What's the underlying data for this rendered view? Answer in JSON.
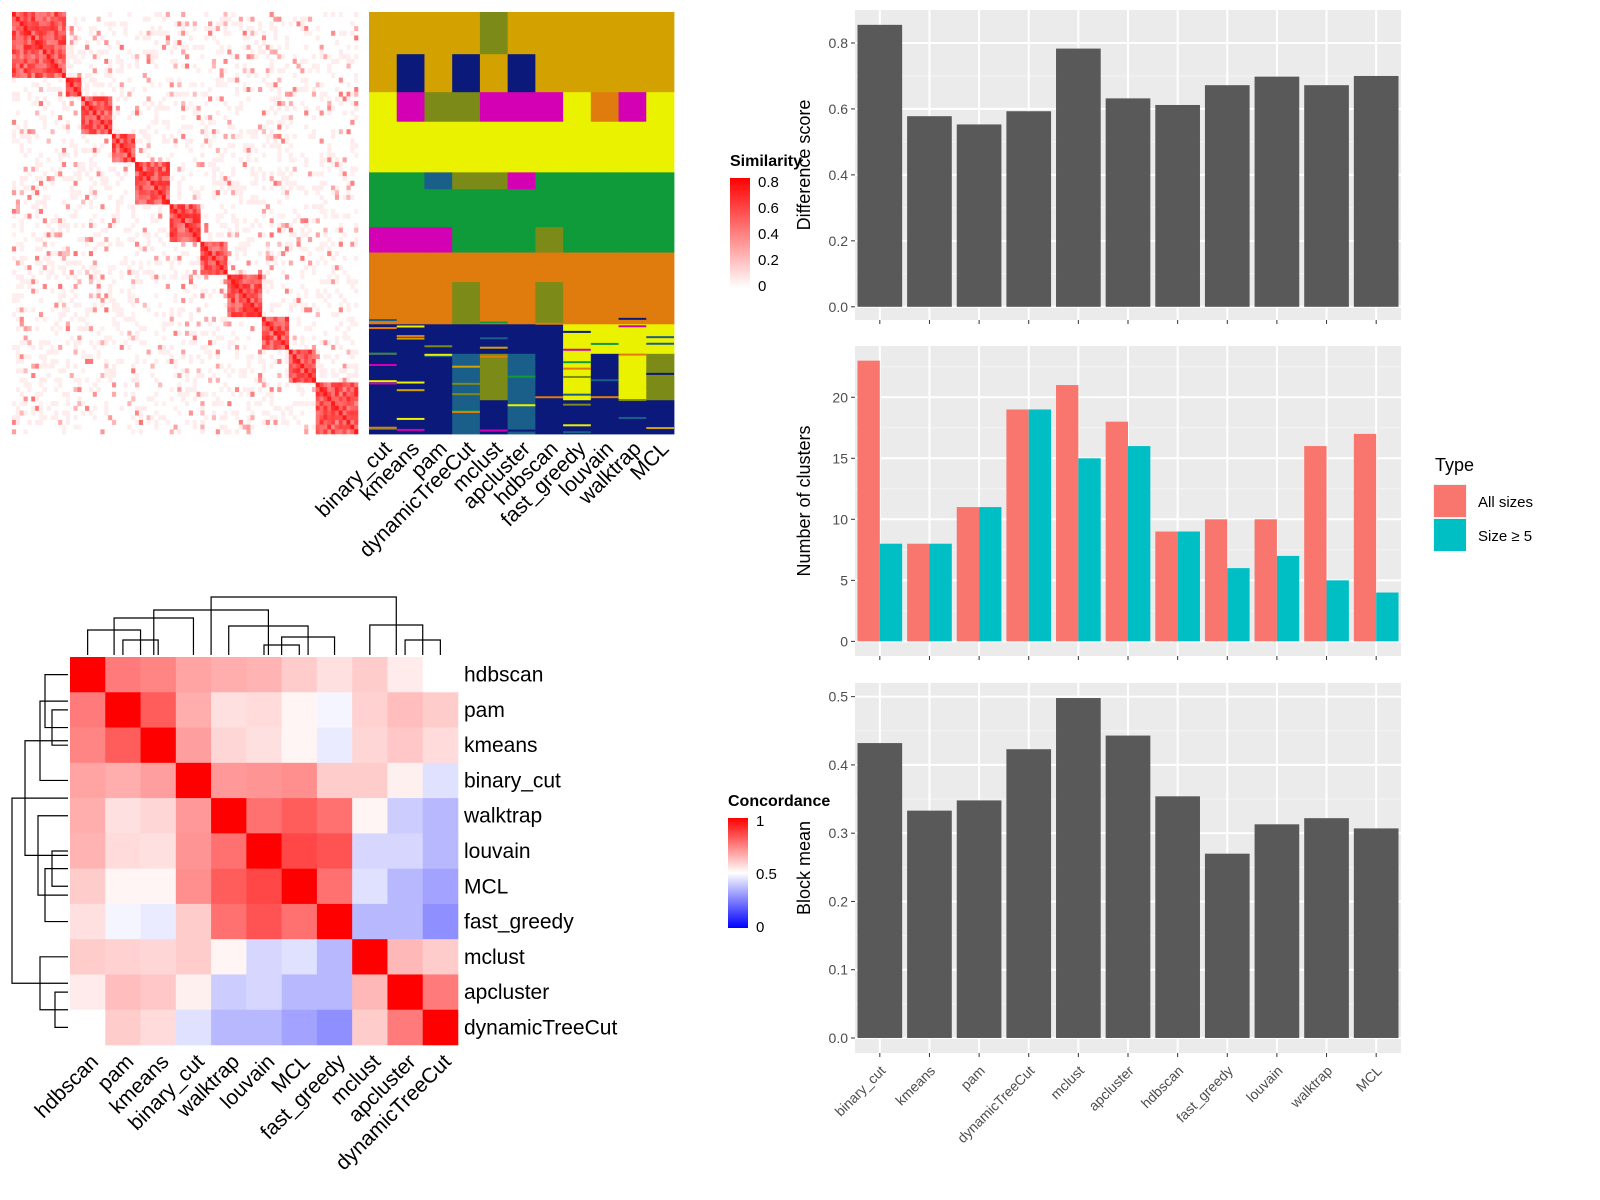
{
  "chart_data": [
    {
      "type": "heatmap",
      "panel": "similarity-heatmap",
      "legend_title": "Similarity",
      "legend_ticks": [
        "0.8",
        "0.6",
        "0.4",
        "0.2",
        "0"
      ],
      "color_low": "#ffffff",
      "color_high": "#ff0000",
      "diagonal_blocks": [
        [
          0,
          0.16
        ],
        [
          0.16,
          0.2
        ],
        [
          0.2,
          0.29
        ],
        [
          0.29,
          0.36
        ],
        [
          0.36,
          0.46
        ],
        [
          0.46,
          0.54
        ],
        [
          0.54,
          0.62
        ],
        [
          0.62,
          0.72
        ],
        [
          0.72,
          0.8
        ],
        [
          0.8,
          0.88
        ],
        [
          0.88,
          1.0
        ]
      ]
    },
    {
      "type": "heatmap",
      "panel": "cluster-assignment-heatmap",
      "columns": [
        "binary_cut",
        "kmeans",
        "pam",
        "dynamicTreeCut",
        "mclust",
        "apcluster",
        "hdbscan",
        "fast_greedy",
        "louvain",
        "walktrap",
        "MCL"
      ],
      "class_colors": [
        "#d4a200",
        "#eaf200",
        "#0f9b3a",
        "#d400b4",
        "#e07b0e",
        "#0b1a7a",
        "#7c8a18",
        "#1a5f8a"
      ],
      "row_bands": [
        {
          "start": 0.0,
          "end": 0.1,
          "cls": [
            0,
            0,
            0,
            0,
            6,
            0,
            0,
            0,
            0,
            0,
            0
          ]
        },
        {
          "start": 0.1,
          "end": 0.19,
          "cls": [
            0,
            5,
            0,
            5,
            0,
            5,
            0,
            0,
            0,
            0,
            0
          ]
        },
        {
          "start": 0.19,
          "end": 0.26,
          "cls": [
            1,
            3,
            6,
            6,
            3,
            3,
            3,
            1,
            4,
            3,
            1
          ]
        },
        {
          "start": 0.26,
          "end": 0.38,
          "cls": [
            1,
            1,
            1,
            1,
            1,
            1,
            1,
            1,
            1,
            1,
            1
          ]
        },
        {
          "start": 0.38,
          "end": 0.42,
          "cls": [
            2,
            2,
            7,
            6,
            6,
            3,
            2,
            2,
            2,
            2,
            2
          ]
        },
        {
          "start": 0.42,
          "end": 0.51,
          "cls": [
            2,
            2,
            2,
            2,
            2,
            2,
            2,
            2,
            2,
            2,
            2
          ]
        },
        {
          "start": 0.51,
          "end": 0.57,
          "cls": [
            3,
            3,
            3,
            2,
            2,
            2,
            6,
            2,
            2,
            2,
            2
          ]
        },
        {
          "start": 0.57,
          "end": 0.64,
          "cls": [
            4,
            4,
            4,
            4,
            4,
            4,
            4,
            4,
            4,
            4,
            4
          ]
        },
        {
          "start": 0.64,
          "end": 0.74,
          "cls": [
            4,
            4,
            4,
            6,
            4,
            4,
            6,
            4,
            4,
            4,
            4
          ]
        },
        {
          "start": 0.74,
          "end": 0.81,
          "cls": [
            5,
            5,
            5,
            5,
            5,
            5,
            5,
            1,
            1,
            1,
            1
          ]
        },
        {
          "start": 0.81,
          "end": 0.92,
          "cls": [
            5,
            5,
            5,
            7,
            6,
            7,
            5,
            1,
            5,
            1,
            6
          ]
        },
        {
          "start": 0.92,
          "end": 1.0,
          "cls": [
            5,
            5,
            5,
            7,
            5,
            7,
            5,
            5,
            5,
            5,
            5
          ]
        }
      ]
    },
    {
      "type": "heatmap",
      "panel": "concordance-heatmap",
      "legend_title": "Concordance",
      "legend_ticks": [
        "1",
        "0.5",
        "0"
      ],
      "color_low": "#0000ff",
      "color_mid": "#ffffff",
      "color_high": "#ff0000",
      "rows": [
        "hdbscan",
        "pam",
        "kmeans",
        "binary_cut",
        "walktrap",
        "louvain",
        "MCL",
        "fast_greedy",
        "mclust",
        "apcluster",
        "dynamicTreeCut"
      ],
      "cols": [
        "hdbscan",
        "pam",
        "kmeans",
        "binary_cut",
        "walktrap",
        "louvain",
        "MCL",
        "fast_greedy",
        "mclust",
        "apcluster",
        "dynamicTreeCut"
      ],
      "values": [
        [
          1.0,
          0.76,
          0.74,
          0.68,
          0.66,
          0.65,
          0.6,
          0.56,
          0.6,
          0.54,
          0.5
        ],
        [
          0.76,
          1.0,
          0.82,
          0.66,
          0.56,
          0.57,
          0.52,
          0.48,
          0.59,
          0.63,
          0.6
        ],
        [
          0.74,
          0.82,
          1.0,
          0.69,
          0.58,
          0.56,
          0.52,
          0.46,
          0.58,
          0.61,
          0.57
        ],
        [
          0.68,
          0.66,
          0.69,
          1.0,
          0.7,
          0.71,
          0.72,
          0.6,
          0.6,
          0.53,
          0.44
        ],
        [
          0.66,
          0.56,
          0.58,
          0.7,
          1.0,
          0.78,
          0.82,
          0.78,
          0.52,
          0.4,
          0.36
        ],
        [
          0.65,
          0.57,
          0.56,
          0.71,
          0.78,
          1.0,
          0.86,
          0.84,
          0.42,
          0.42,
          0.36
        ],
        [
          0.6,
          0.52,
          0.52,
          0.72,
          0.82,
          0.86,
          1.0,
          0.78,
          0.44,
          0.36,
          0.32
        ],
        [
          0.56,
          0.48,
          0.46,
          0.6,
          0.78,
          0.84,
          0.78,
          1.0,
          0.36,
          0.36,
          0.28
        ],
        [
          0.6,
          0.59,
          0.58,
          0.6,
          0.52,
          0.42,
          0.44,
          0.36,
          1.0,
          0.64,
          0.6
        ],
        [
          0.54,
          0.63,
          0.61,
          0.53,
          0.4,
          0.42,
          0.36,
          0.36,
          0.64,
          1.0,
          0.76
        ],
        [
          0.5,
          0.6,
          0.57,
          0.44,
          0.36,
          0.36,
          0.32,
          0.28,
          0.6,
          0.76,
          1.0
        ]
      ]
    },
    {
      "type": "bar",
      "panel": "difference-score",
      "categories": [
        "binary_cut",
        "kmeans",
        "pam",
        "dynamicTreeCut",
        "mclust",
        "apcluster",
        "hdbscan",
        "fast_greedy",
        "louvain",
        "walktrap",
        "MCL"
      ],
      "values": [
        0.855,
        0.578,
        0.553,
        0.593,
        0.783,
        0.632,
        0.612,
        0.672,
        0.698,
        0.672,
        0.7
      ],
      "ylabel": "Difference score",
      "ylim": [
        -0.04,
        0.9
      ],
      "yticks": [
        0.0,
        0.2,
        0.4,
        0.6,
        0.8
      ],
      "ytick_labels": [
        "0.0",
        "0.2",
        "0.4",
        "0.6",
        "0.8"
      ],
      "bar_color": "#595959",
      "grid": true
    },
    {
      "type": "bar",
      "panel": "number-of-clusters",
      "categories": [
        "binary_cut",
        "kmeans",
        "pam",
        "dynamicTreeCut",
        "mclust",
        "apcluster",
        "hdbscan",
        "fast_greedy",
        "louvain",
        "walktrap",
        "MCL"
      ],
      "series": [
        {
          "name": "All sizes",
          "values": [
            23,
            8,
            11,
            19,
            21,
            18,
            9,
            10,
            10,
            16,
            17
          ],
          "color": "#f8766d"
        },
        {
          "name": "Size ≥ 5",
          "values": [
            8,
            8,
            11,
            19,
            15,
            16,
            9,
            6,
            7,
            5,
            4
          ],
          "color": "#00bfc4"
        }
      ],
      "ylabel": "Number of clusters",
      "ylim": [
        -1.2,
        24.2
      ],
      "yticks": [
        0,
        5,
        10,
        15,
        20
      ],
      "ytick_labels": [
        "0",
        "5",
        "10",
        "15",
        "20"
      ],
      "legend_title": "Type",
      "legend_position": "right",
      "grid": true
    },
    {
      "type": "bar",
      "panel": "block-mean",
      "categories": [
        "binary_cut",
        "kmeans",
        "pam",
        "dynamicTreeCut",
        "mclust",
        "apcluster",
        "hdbscan",
        "fast_greedy",
        "louvain",
        "walktrap",
        "MCL"
      ],
      "values": [
        0.432,
        0.333,
        0.348,
        0.423,
        0.498,
        0.443,
        0.354,
        0.27,
        0.313,
        0.322,
        0.307
      ],
      "ylabel": "Block mean",
      "ylim": [
        -0.022,
        0.52
      ],
      "yticks": [
        0.0,
        0.1,
        0.2,
        0.3,
        0.4,
        0.5
      ],
      "ytick_labels": [
        "0.0",
        "0.1",
        "0.2",
        "0.3",
        "0.4",
        "0.5"
      ],
      "bar_color": "#595959",
      "grid": true
    }
  ]
}
